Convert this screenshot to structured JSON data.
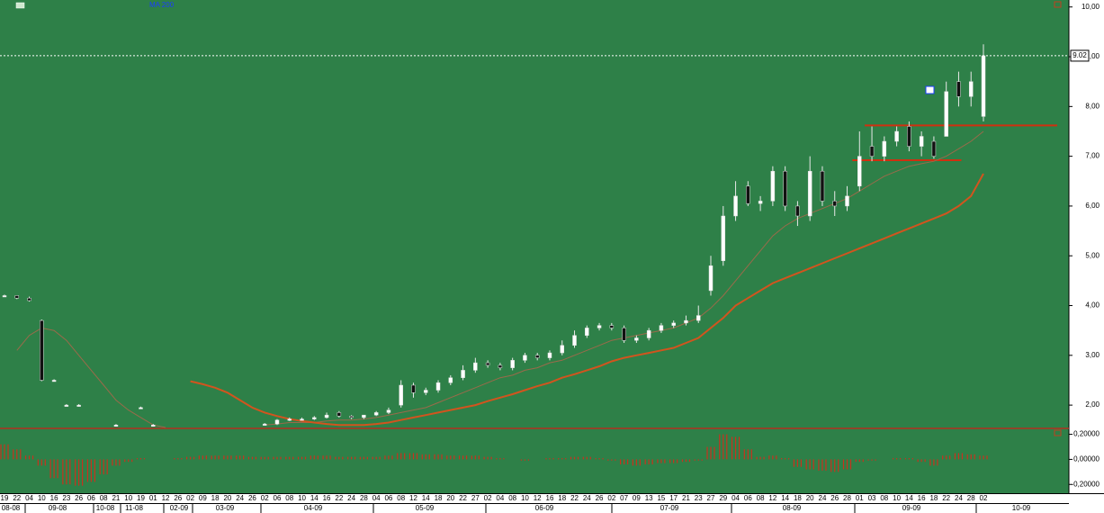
{
  "chart_data": {
    "type": "candlestick",
    "legend": [
      "MA 200"
    ],
    "categories": [
      "19",
      "22",
      "04",
      "10",
      "16",
      "23",
      "26",
      "06",
      "08",
      "21",
      "10",
      "19",
      "01",
      "12",
      "26",
      "02",
      "09",
      "18",
      "20",
      "24",
      "26",
      "02",
      "06",
      "08",
      "10",
      "14",
      "16",
      "22",
      "24",
      "28",
      "04",
      "06",
      "08",
      "12",
      "14",
      "18",
      "20",
      "22",
      "27",
      "02",
      "04",
      "08",
      "10",
      "12",
      "16",
      "18",
      "22",
      "24",
      "26",
      "02",
      "07",
      "09",
      "13",
      "15",
      "17",
      "21",
      "23",
      "27",
      "29",
      "04",
      "06",
      "08",
      "12",
      "14",
      "18",
      "20",
      "24",
      "26",
      "28",
      "01",
      "03",
      "08",
      "10",
      "14",
      "16",
      "18",
      "22",
      "24",
      "28",
      "02"
    ],
    "months": [
      "08-08",
      "09-08",
      "10-08",
      "11-08",
      "02-09",
      "03-09",
      "04-09",
      "05-09",
      "06-09",
      "07-09",
      "08-09",
      "09-09",
      "10-09"
    ],
    "open": [
      4.2,
      4.2,
      4.15,
      3.7,
      2.5,
      2.0,
      2.0,
      null,
      null,
      1.6,
      null,
      1.95,
      1.6,
      null,
      null,
      null,
      null,
      null,
      null,
      null,
      null,
      1.62,
      1.62,
      1.7,
      1.72,
      1.72,
      1.75,
      1.85,
      1.78,
      1.75,
      1.8,
      1.85,
      2.0,
      2.4,
      2.25,
      2.3,
      2.45,
      2.55,
      2.7,
      2.85,
      2.8,
      2.75,
      2.9,
      3.0,
      2.95,
      3.05,
      3.2,
      3.4,
      3.55,
      3.6,
      3.55,
      3.3,
      3.35,
      3.5,
      3.6,
      3.65,
      3.7,
      4.3,
      4.9,
      5.8,
      6.4,
      6.05,
      6.1,
      6.7,
      6.0,
      5.8,
      6.7,
      6.1,
      6.0,
      6.4,
      7.2,
      7.0,
      7.3,
      7.6,
      7.2,
      7.3,
      7.4,
      8.5,
      8.2,
      7.8
    ],
    "high": [
      4.22,
      4.2,
      4.18,
      3.72,
      2.52,
      2.02,
      2.02,
      null,
      null,
      1.62,
      null,
      1.97,
      1.62,
      null,
      null,
      null,
      null,
      null,
      null,
      null,
      null,
      1.64,
      1.72,
      1.75,
      1.75,
      1.78,
      1.85,
      1.88,
      1.8,
      1.8,
      1.88,
      1.95,
      2.5,
      2.45,
      2.35,
      2.5,
      2.6,
      2.8,
      2.95,
      2.9,
      2.85,
      2.95,
      3.05,
      3.05,
      3.1,
      3.3,
      3.5,
      3.6,
      3.65,
      3.65,
      3.6,
      3.4,
      3.55,
      3.65,
      3.7,
      3.8,
      4.0,
      5.0,
      6.0,
      6.5,
      6.5,
      6.2,
      6.8,
      6.8,
      6.1,
      7.0,
      6.8,
      6.3,
      6.4,
      7.5,
      7.6,
      7.4,
      7.6,
      7.7,
      7.5,
      7.4,
      8.5,
      8.7,
      8.7,
      9.25
    ],
    "low": [
      4.18,
      4.13,
      4.08,
      2.48,
      2.48,
      1.98,
      1.98,
      null,
      null,
      1.58,
      null,
      1.93,
      1.58,
      null,
      null,
      null,
      null,
      null,
      null,
      null,
      null,
      1.6,
      1.6,
      1.68,
      1.7,
      1.7,
      1.73,
      1.75,
      1.72,
      1.72,
      1.78,
      1.82,
      1.95,
      2.15,
      2.2,
      2.25,
      2.4,
      2.5,
      2.65,
      2.75,
      2.7,
      2.7,
      2.85,
      2.9,
      2.9,
      3.0,
      3.15,
      3.35,
      3.5,
      3.5,
      3.25,
      3.25,
      3.3,
      3.45,
      3.55,
      3.6,
      3.65,
      4.2,
      4.8,
      5.7,
      6.0,
      5.9,
      6.0,
      5.9,
      5.6,
      5.7,
      6.0,
      5.8,
      5.9,
      6.3,
      6.9,
      6.9,
      7.2,
      7.1,
      7.0,
      6.95,
      7.4,
      8.0,
      8.0,
      7.7
    ],
    "close": [
      4.2,
      4.15,
      4.1,
      2.5,
      2.5,
      2.0,
      2.0,
      null,
      null,
      1.6,
      null,
      1.95,
      1.6,
      null,
      null,
      null,
      null,
      null,
      null,
      null,
      null,
      1.62,
      1.7,
      1.72,
      1.72,
      1.75,
      1.8,
      1.78,
      1.75,
      1.8,
      1.85,
      1.9,
      2.4,
      2.25,
      2.3,
      2.45,
      2.55,
      2.7,
      2.85,
      2.8,
      2.75,
      2.9,
      3.0,
      2.95,
      3.05,
      3.2,
      3.4,
      3.55,
      3.6,
      3.55,
      3.3,
      3.35,
      3.5,
      3.6,
      3.65,
      3.7,
      3.8,
      4.8,
      5.8,
      6.2,
      6.05,
      6.1,
      6.7,
      6.0,
      5.8,
      6.7,
      6.1,
      6.0,
      6.2,
      7.0,
      7.0,
      7.3,
      7.5,
      7.2,
      7.4,
      7.0,
      8.3,
      8.2,
      8.5,
      9.02
    ],
    "series": [
      {
        "color": "#9a6a4a",
        "values": [
          null,
          3.1,
          3.4,
          3.55,
          3.5,
          3.3,
          3.0,
          2.7,
          2.4,
          2.1,
          1.9,
          1.75,
          1.6,
          1.55,
          null,
          null,
          null,
          null,
          null,
          null,
          null,
          1.6,
          1.62,
          1.65,
          1.65,
          1.65,
          1.68,
          1.7,
          1.7,
          1.72,
          1.75,
          1.8,
          1.85,
          1.9,
          1.95,
          2.05,
          2.15,
          2.25,
          2.35,
          2.45,
          2.55,
          2.6,
          2.7,
          2.75,
          2.85,
          2.9,
          3.0,
          3.1,
          3.2,
          3.3,
          3.35,
          3.4,
          3.45,
          3.5,
          3.55,
          3.65,
          3.75,
          3.95,
          4.2,
          4.5,
          4.8,
          5.1,
          5.4,
          5.6,
          5.75,
          5.85,
          5.95,
          6.05,
          6.15,
          6.3,
          6.45,
          6.6,
          6.7,
          6.8,
          6.85,
          6.9,
          7.0,
          7.15,
          7.3,
          7.5
        ]
      },
      {
        "color": "#d2541e",
        "values": [
          null,
          null,
          null,
          null,
          null,
          null,
          null,
          null,
          null,
          null,
          null,
          null,
          null,
          null,
          null,
          2.48,
          2.42,
          2.35,
          2.25,
          2.1,
          1.95,
          1.85,
          1.78,
          1.72,
          1.68,
          1.65,
          1.62,
          1.6,
          1.6,
          1.6,
          1.62,
          1.65,
          1.7,
          1.75,
          1.8,
          1.85,
          1.9,
          1.95,
          2.0,
          2.08,
          2.15,
          2.22,
          2.3,
          2.38,
          2.45,
          2.55,
          2.62,
          2.7,
          2.78,
          2.88,
          2.95,
          3.0,
          3.05,
          3.1,
          3.15,
          3.25,
          3.35,
          3.55,
          3.75,
          4.0,
          4.15,
          4.3,
          4.45,
          4.55,
          4.65,
          4.75,
          4.85,
          4.95,
          5.05,
          5.15,
          5.25,
          5.35,
          5.45,
          5.55,
          5.65,
          5.75,
          5.85,
          6.0,
          6.2,
          6.65
        ]
      }
    ],
    "ylim": [
      1.55,
      10.14
    ],
    "yticks": [
      {
        "value": 2,
        "label": "2,00"
      },
      {
        "value": 3,
        "label": "3,00"
      },
      {
        "value": 4,
        "label": "4,00"
      },
      {
        "value": 5,
        "label": "5,00"
      },
      {
        "value": 6,
        "label": "6,00"
      },
      {
        "value": 7,
        "label": "7,00"
      },
      {
        "value": 8,
        "label": "8,00"
      },
      {
        "value": 9,
        "label": "9,00"
      },
      {
        "value": 10,
        "label": "10,00"
      }
    ],
    "last_price": {
      "value": 9.02,
      "label": "9.02"
    },
    "levels": [
      7.62,
      6.92
    ],
    "macd": {
      "color": "#c8321e",
      "values": [
        0.12,
        0.08,
        0.03,
        -0.05,
        -0.15,
        -0.2,
        -0.21,
        -0.18,
        -0.12,
        -0.05,
        -0.02,
        0.01,
        0,
        0,
        0.01,
        0.02,
        0.03,
        0.03,
        0.03,
        0.03,
        0.02,
        0.02,
        0.02,
        0.02,
        0.02,
        0.03,
        0.03,
        0.02,
        0.02,
        0.02,
        0.02,
        0.03,
        0.05,
        0.05,
        0.04,
        0.04,
        0.03,
        0.03,
        0.03,
        0.02,
        0.01,
        0,
        -0.01,
        0,
        0.01,
        0.01,
        0.02,
        0.02,
        0.01,
        -0.01,
        -0.04,
        -0.05,
        -0.04,
        -0.03,
        -0.03,
        -0.02,
        -0.01,
        0.1,
        0.2,
        0.18,
        0.08,
        0.02,
        0.03,
        0.01,
        -0.06,
        -0.08,
        -0.09,
        -0.1,
        -0.08,
        -0.02,
        -0.01,
        0,
        0.01,
        0.01,
        -0.02,
        -0.05,
        0.03,
        0.05,
        0.04,
        0.03
      ],
      "ylim": [
        -0.27,
        0.24
      ],
      "yticks": [
        {
          "value": 0.2,
          "label": "0,20000"
        },
        {
          "value": 0,
          "label": "0,00000"
        },
        {
          "value": -0.2,
          "label": "-0,20000"
        }
      ]
    }
  }
}
